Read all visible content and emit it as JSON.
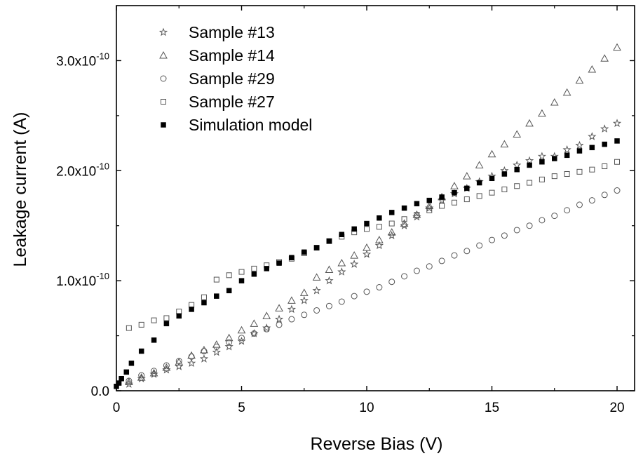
{
  "chart_data": {
    "type": "scatter",
    "title": "",
    "xlabel": "Reverse Bias (V)",
    "ylabel": "Leakage current (A)",
    "xlim": [
      0,
      20.7
    ],
    "ylim": [
      0,
      3.5e-10
    ],
    "x_ticks": [
      0,
      5,
      10,
      15,
      20
    ],
    "x_tick_labels": [
      "0",
      "5",
      "10",
      "15",
      "20"
    ],
    "y_ticks": [
      0,
      1e-10,
      2e-10,
      3e-10
    ],
    "y_tick_labels": [
      {
        "mantissa": "0.0",
        "exponent": ""
      },
      {
        "mantissa": "1.0x10",
        "exponent": "-10"
      },
      {
        "mantissa": "2.0x10",
        "exponent": "-10"
      },
      {
        "mantissa": "3.0x10",
        "exponent": "-10"
      }
    ],
    "grid": false,
    "legend_position": "top-left",
    "series": [
      {
        "name": "Sample #13",
        "marker": "star",
        "x": [
          0.5,
          1,
          1.5,
          2,
          2.5,
          3,
          3.5,
          4,
          4.5,
          5,
          5.5,
          6,
          6.5,
          7,
          7.5,
          8,
          8.5,
          9,
          9.5,
          10,
          10.5,
          11,
          11.5,
          12,
          12.5,
          13,
          13.5,
          14,
          14.5,
          15,
          15.5,
          16,
          16.5,
          17,
          17.5,
          18,
          18.5,
          19,
          19.5,
          20
        ],
        "y": [
          6e-12,
          1.1e-11,
          1.5e-11,
          1.9e-11,
          2.2e-11,
          2.5e-11,
          2.9e-11,
          3.5e-11,
          4e-11,
          4.5e-11,
          5.2e-11,
          5.7e-11,
          6.5e-11,
          7.4e-11,
          8.2e-11,
          9.1e-11,
          1e-10,
          1.08e-10,
          1.15e-10,
          1.24e-10,
          1.32e-10,
          1.41e-10,
          1.5e-10,
          1.58e-10,
          1.66e-10,
          1.73e-10,
          1.79e-10,
          1.84e-10,
          1.9e-10,
          1.95e-10,
          2e-10,
          2.05e-10,
          2.09e-10,
          2.13e-10,
          2.13e-10,
          2.19e-10,
          2.23e-10,
          2.31e-10,
          2.38e-10,
          2.43e-10
        ]
      },
      {
        "name": "Sample #14",
        "marker": "triangle",
        "x": [
          0.5,
          1,
          1.5,
          2,
          2.5,
          3,
          3.5,
          4,
          4.5,
          5,
          5.5,
          6,
          6.5,
          7,
          7.5,
          8,
          8.5,
          9,
          9.5,
          10,
          10.5,
          11,
          11.5,
          12,
          12.5,
          13,
          13.5,
          14,
          14.5,
          15,
          15.5,
          16,
          16.5,
          17,
          17.5,
          18,
          18.5,
          19,
          19.5,
          20
        ],
        "y": [
          8e-12,
          1.2e-11,
          1.6e-11,
          2.1e-11,
          2.6e-11,
          3.2e-11,
          3.7e-11,
          4.2e-11,
          4.8e-11,
          5.5e-11,
          6.1e-11,
          6.8e-11,
          7.5e-11,
          8.2e-11,
          8.9e-11,
          1.03e-10,
          1.1e-10,
          1.16e-10,
          1.23e-10,
          1.3e-10,
          1.37e-10,
          1.44e-10,
          1.52e-10,
          1.6e-10,
          1.68e-10,
          1.76e-10,
          1.86e-10,
          1.95e-10,
          2.05e-10,
          2.15e-10,
          2.24e-10,
          2.33e-10,
          2.43e-10,
          2.52e-10,
          2.62e-10,
          2.71e-10,
          2.82e-10,
          2.92e-10,
          3.02e-10,
          3.12e-10
        ]
      },
      {
        "name": "Sample #29",
        "marker": "circle",
        "x": [
          0.5,
          1,
          1.5,
          2,
          2.5,
          3,
          3.5,
          4,
          4.5,
          5,
          5.5,
          6,
          6.5,
          7,
          7.5,
          8,
          8.5,
          9,
          9.5,
          10,
          10.5,
          11,
          11.5,
          12,
          12.5,
          13,
          13.5,
          14,
          14.5,
          15,
          15.5,
          16,
          16.5,
          17,
          17.5,
          18,
          18.5,
          19,
          19.5,
          20
        ],
        "y": [
          9e-12,
          1.4e-11,
          1.8e-11,
          2.3e-11,
          2.7e-11,
          3.1e-11,
          3.6e-11,
          4e-11,
          4.4e-11,
          4.8e-11,
          5.2e-11,
          5.6e-11,
          6e-11,
          6.5e-11,
          6.9e-11,
          7.3e-11,
          7.7e-11,
          8.1e-11,
          8.6e-11,
          9e-11,
          9.4e-11,
          9.9e-11,
          1.04e-10,
          1.09e-10,
          1.13e-10,
          1.18e-10,
          1.23e-10,
          1.27e-10,
          1.32e-10,
          1.37e-10,
          1.41e-10,
          1.46e-10,
          1.5e-10,
          1.55e-10,
          1.59e-10,
          1.64e-10,
          1.69e-10,
          1.73e-10,
          1.78e-10,
          1.82e-10
        ]
      },
      {
        "name": "Sample #27",
        "marker": "square-open",
        "x": [
          0.5,
          1,
          1.5,
          2,
          2.5,
          3,
          3.5,
          4,
          4.5,
          5,
          5.5,
          6,
          6.5,
          7,
          7.5,
          8,
          8.5,
          9,
          9.5,
          10,
          10.5,
          11,
          11.5,
          12,
          12.5,
          13,
          13.5,
          14,
          14.5,
          15,
          15.5,
          16,
          16.5,
          17,
          17.5,
          18,
          18.5,
          19,
          19.5,
          20
        ],
        "y": [
          5.7e-11,
          6e-11,
          6.4e-11,
          6.6e-11,
          7.2e-11,
          7.8e-11,
          8.5e-11,
          1.01e-10,
          1.05e-10,
          1.08e-10,
          1.11e-10,
          1.14e-10,
          1.17e-10,
          1.2e-10,
          1.25e-10,
          1.3e-10,
          1.36e-10,
          1.4e-10,
          1.44e-10,
          1.47e-10,
          1.49e-10,
          1.52e-10,
          1.56e-10,
          1.6e-10,
          1.64e-10,
          1.68e-10,
          1.71e-10,
          1.74e-10,
          1.77e-10,
          1.8e-10,
          1.83e-10,
          1.86e-10,
          1.89e-10,
          1.92e-10,
          1.95e-10,
          1.97e-10,
          1.99e-10,
          2.01e-10,
          2.04e-10,
          2.08e-10
        ]
      },
      {
        "name": "Simulation model",
        "marker": "square-filled",
        "x": [
          0,
          0.1,
          0.2,
          0.4,
          0.6,
          1,
          1.5,
          2,
          2.5,
          3,
          3.5,
          4,
          4.5,
          5,
          5.5,
          6,
          6.5,
          7,
          7.5,
          8,
          8.5,
          9,
          9.5,
          10,
          10.5,
          11,
          11.5,
          12,
          12.5,
          13,
          13.5,
          14,
          14.5,
          15,
          15.5,
          16,
          16.5,
          17,
          17.5,
          18,
          18.5,
          19,
          19.5,
          20
        ],
        "y": [
          4e-12,
          7e-12,
          1.1e-11,
          1.7e-11,
          2.5e-11,
          3.6e-11,
          4.6e-11,
          6.1e-11,
          6.8e-11,
          7.4e-11,
          8e-11,
          8.6e-11,
          9.1e-11,
          1e-10,
          1.06e-10,
          1.11e-10,
          1.16e-10,
          1.21e-10,
          1.26e-10,
          1.3e-10,
          1.36e-10,
          1.42e-10,
          1.47e-10,
          1.52e-10,
          1.57e-10,
          1.62e-10,
          1.66e-10,
          1.7e-10,
          1.73e-10,
          1.76e-10,
          1.8e-10,
          1.84e-10,
          1.89e-10,
          1.93e-10,
          1.97e-10,
          2.01e-10,
          2.05e-10,
          2.08e-10,
          2.11e-10,
          2.14e-10,
          2.18e-10,
          2.21e-10,
          2.24e-10,
          2.27e-10
        ]
      }
    ]
  }
}
